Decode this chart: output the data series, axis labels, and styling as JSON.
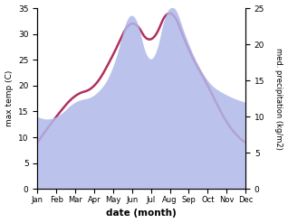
{
  "months": [
    "Jan",
    "Feb",
    "Mar",
    "Apr",
    "May",
    "Jun",
    "Jul",
    "Aug",
    "Sep",
    "Oct",
    "Nov",
    "Dec"
  ],
  "month_positions": [
    0,
    1,
    2,
    3,
    4,
    5,
    6,
    7,
    8,
    9,
    10,
    11
  ],
  "max_temp": [
    9,
    14,
    18,
    20,
    26,
    32,
    29,
    34,
    27,
    20,
    13,
    9
  ],
  "precipitation": [
    10,
    10,
    12,
    13,
    17,
    24,
    18,
    25,
    20,
    15,
    13,
    12
  ],
  "temp_ylim": [
    0,
    35
  ],
  "precip_ylim": [
    0,
    25
  ],
  "temp_color": "#b03060",
  "precip_color_fill": "#b0b8e8",
  "background_color": "#ffffff",
  "ylabel_left": "max temp (C)",
  "ylabel_right": "med. precipitation (kg/m2)",
  "xlabel": "date (month)",
  "temp_linewidth": 1.8,
  "left_yticks": [
    0,
    5,
    10,
    15,
    20,
    25,
    30,
    35
  ],
  "right_yticks": [
    0,
    5,
    10,
    15,
    20,
    25
  ]
}
